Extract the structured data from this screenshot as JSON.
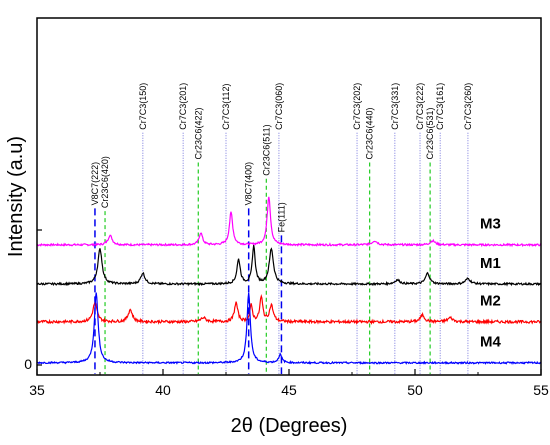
{
  "chart_data": {
    "type": "line",
    "xlabel": "2θ (Degrees)",
    "ylabel": "Intensity (a.u)",
    "xlim": [
      35,
      55
    ],
    "ylim": [
      0,
      100
    ],
    "x_ticks": [
      35,
      40,
      45,
      50,
      55
    ],
    "x_tick_labels": [
      "35",
      "40",
      "45",
      "50",
      "55"
    ],
    "y_ticks": [
      0,
      50
    ],
    "y_tick_labels": [
      "0",
      ""
    ],
    "grid": false,
    "reference_lines": [
      {
        "x": 37.3,
        "label": "V8C7(222)",
        "style": "blue-dash",
        "top": 58
      },
      {
        "x": 37.7,
        "label": "Cr23C6(420)",
        "style": "green-dash",
        "top": 57
      },
      {
        "x": 39.2,
        "label": "Cr7C3(150)",
        "style": "blue-dot",
        "top": 86
      },
      {
        "x": 40.8,
        "label": "Cr7C3(201)",
        "style": "blue-dot",
        "top": 86
      },
      {
        "x": 41.4,
        "label": "Cr23C6(422)",
        "style": "green-dash",
        "top": 75
      },
      {
        "x": 42.5,
        "label": "Cr7C3(112)",
        "style": "blue-dot",
        "top": 86
      },
      {
        "x": 43.4,
        "label": "V8C7(400)",
        "style": "blue-dash",
        "top": 58
      },
      {
        "x": 44.1,
        "label": "Cr23C6(511)",
        "style": "green-dash",
        "top": 69
      },
      {
        "x": 44.6,
        "label": "Cr7C3(060)",
        "style": "blue-dot",
        "top": 86
      },
      {
        "x": 44.7,
        "label": "Fe(111)",
        "style": "blue-dash",
        "top": 48
      },
      {
        "x": 47.7,
        "label": "Cr7C3(202)",
        "style": "blue-dot",
        "top": 86
      },
      {
        "x": 48.2,
        "label": "Cr23C6(440)",
        "style": "green-dash",
        "top": 75
      },
      {
        "x": 49.2,
        "label": "Cr7C3(331)",
        "style": "blue-dot",
        "top": 86
      },
      {
        "x": 50.2,
        "label": "Cr7C3(222)",
        "style": "blue-dot",
        "top": 86
      },
      {
        "x": 50.6,
        "label": "Cr23C6(531)",
        "style": "green-dash",
        "top": 75
      },
      {
        "x": 51.0,
        "label": "Cr7C3(161)",
        "style": "blue-dot",
        "top": 86
      },
      {
        "x": 52.1,
        "label": "Cr7C3(260)",
        "style": "blue-dot",
        "top": 86
      }
    ],
    "series": [
      {
        "name": "M3",
        "color": "#ff00ff",
        "baseline": 44.5,
        "noise": 0.35,
        "peaks": [
          {
            "x": 37.9,
            "h": 3.5,
            "w": 0.1
          },
          {
            "x": 41.5,
            "h": 4.5,
            "w": 0.08
          },
          {
            "x": 42.7,
            "h": 12,
            "w": 0.08
          },
          {
            "x": 44.2,
            "h": 18,
            "w": 0.08
          },
          {
            "x": 48.4,
            "h": 1.5,
            "w": 0.12
          },
          {
            "x": 50.7,
            "h": 1.5,
            "w": 0.12
          }
        ]
      },
      {
        "name": "M1",
        "color": "#000000",
        "baseline": 30,
        "noise": 0.35,
        "peaks": [
          {
            "x": 37.5,
            "h": 13,
            "w": 0.1
          },
          {
            "x": 39.2,
            "h": 4,
            "w": 0.1
          },
          {
            "x": 43.0,
            "h": 9,
            "w": 0.08
          },
          {
            "x": 43.6,
            "h": 14,
            "w": 0.07
          },
          {
            "x": 44.3,
            "h": 13,
            "w": 0.1
          },
          {
            "x": 49.3,
            "h": 1.5,
            "w": 0.12
          },
          {
            "x": 50.5,
            "h": 4,
            "w": 0.1
          },
          {
            "x": 52.1,
            "h": 2,
            "w": 0.12
          }
        ]
      },
      {
        "name": "M2",
        "color": "#ff0000",
        "baseline": 16,
        "noise": 0.5,
        "peaks": [
          {
            "x": 37.3,
            "h": 7,
            "w": 0.1
          },
          {
            "x": 38.7,
            "h": 4.5,
            "w": 0.1
          },
          {
            "x": 41.6,
            "h": 1.5,
            "w": 0.12
          },
          {
            "x": 42.9,
            "h": 7,
            "w": 0.08
          },
          {
            "x": 43.5,
            "h": 6,
            "w": 0.06
          },
          {
            "x": 43.9,
            "h": 9,
            "w": 0.07
          },
          {
            "x": 44.3,
            "h": 6,
            "w": 0.09
          },
          {
            "x": 50.3,
            "h": 2.5,
            "w": 0.1
          },
          {
            "x": 51.4,
            "h": 1.5,
            "w": 0.12
          }
        ]
      },
      {
        "name": "M4",
        "color": "#0000ff",
        "baseline": 0.8,
        "noise": 0.3,
        "peaks": [
          {
            "x": 37.35,
            "h": 26,
            "w": 0.09
          },
          {
            "x": 43.4,
            "h": 26,
            "w": 0.08
          },
          {
            "x": 44.65,
            "h": 3,
            "w": 0.08
          }
        ]
      }
    ]
  }
}
